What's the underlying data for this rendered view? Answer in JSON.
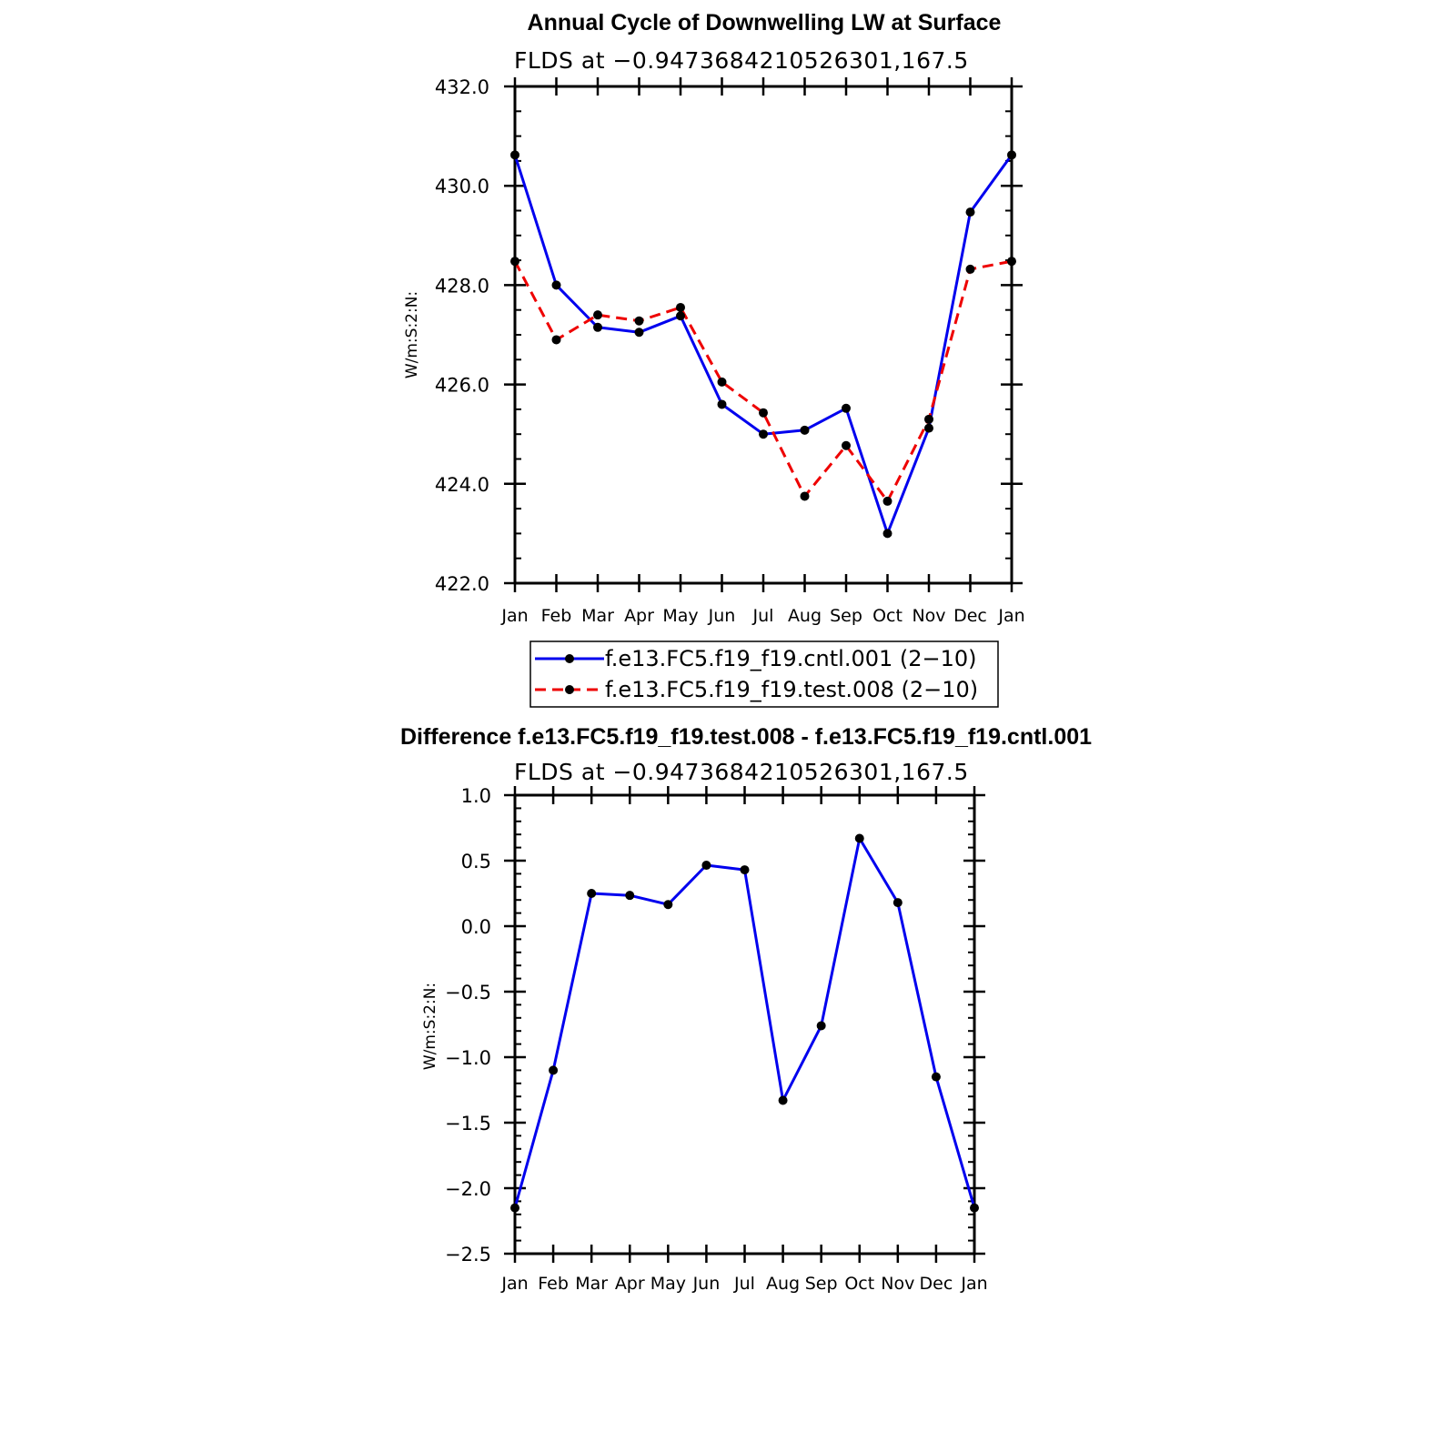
{
  "chart_data": [
    {
      "type": "line",
      "title": "Annual Cycle of Downwelling LW at Surface",
      "subtitle": "FLDS at −0.9473684210526301,167.5",
      "xlabel": "",
      "ylabel": "W/m:S:2:N:",
      "ylim": [
        422.0,
        432.0
      ],
      "yticks": [
        422.0,
        424.0,
        426.0,
        428.0,
        430.0,
        432.0
      ],
      "ytick_labels": [
        "422.0",
        "424.0",
        "426.0",
        "428.0",
        "430.0",
        "432.0"
      ],
      "categories": [
        "Jan",
        "Feb",
        "Mar",
        "Apr",
        "May",
        "Jun",
        "Jul",
        "Aug",
        "Sep",
        "Oct",
        "Nov",
        "Dec",
        "Jan"
      ],
      "series": [
        {
          "name": "f.e13.FC5.f19_f19.cntl.001 (2−10)",
          "color": "#0000ee",
          "dashed": false,
          "values": [
            430.62,
            428.0,
            427.15,
            427.05,
            427.38,
            425.6,
            425.0,
            425.08,
            425.52,
            423.0,
            425.12,
            429.47,
            430.62
          ]
        },
        {
          "name": "f.e13.FC5.f19_f19.test.008 (2−10)",
          "color": "#ee0000",
          "dashed": true,
          "values": [
            428.48,
            426.9,
            427.4,
            427.28,
            427.55,
            426.05,
            425.43,
            423.75,
            424.77,
            423.65,
            425.3,
            428.32,
            428.48
          ]
        }
      ],
      "legend": "bottom"
    },
    {
      "type": "line",
      "title": "Difference f.e13.FC5.f19_f19.test.008 - f.e13.FC5.f19_f19.cntl.001",
      "subtitle": "FLDS at −0.9473684210526301,167.5",
      "xlabel": "",
      "ylabel": "W/m:S:2:N:",
      "ylim": [
        -2.5,
        1.0
      ],
      "yticks": [
        -2.5,
        -2.0,
        -1.5,
        -1.0,
        -0.5,
        0.0,
        0.5,
        1.0
      ],
      "ytick_labels": [
        "−2.5",
        "−2.0",
        "−1.5",
        "−1.0",
        "−0.5",
        "0.0",
        "0.5",
        "1.0"
      ],
      "categories": [
        "Jan",
        "Feb",
        "Mar",
        "Apr",
        "May",
        "Jun",
        "Jul",
        "Aug",
        "Sep",
        "Oct",
        "Nov",
        "Dec",
        "Jan"
      ],
      "series": [
        {
          "name": "difference",
          "color": "#0000ee",
          "dashed": false,
          "values": [
            -2.15,
            -1.1,
            0.25,
            0.235,
            0.165,
            0.465,
            0.43,
            -1.33,
            -0.76,
            0.67,
            0.18,
            -1.15,
            -2.15
          ]
        }
      ]
    }
  ]
}
